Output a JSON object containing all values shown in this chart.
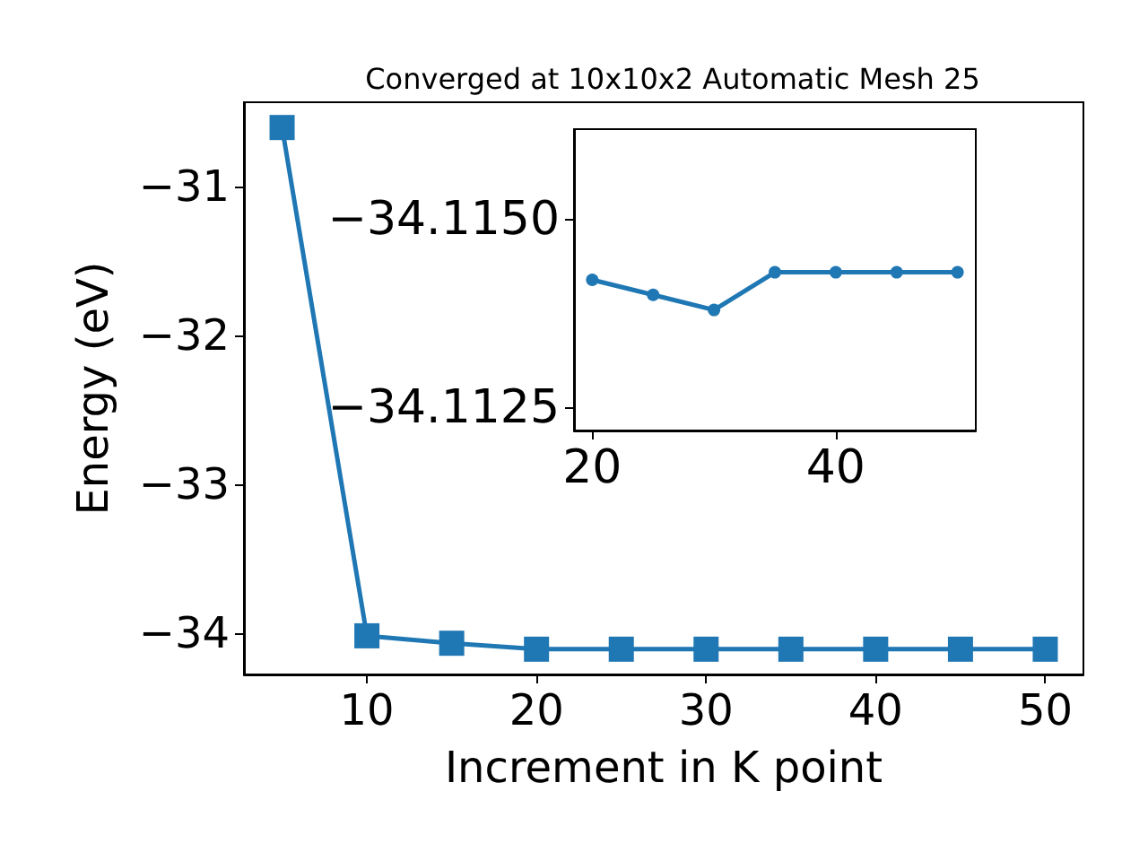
{
  "chart_data": [
    {
      "type": "line",
      "title": "Converged at 10x10x2 Automatic Mesh 25",
      "xlabel": "Increment in K point",
      "ylabel": "Energy (eV)",
      "x": [
        5,
        10,
        15,
        20,
        25,
        30,
        35,
        40,
        45,
        50
      ],
      "series": [
        {
          "color": "#1f77b4",
          "values": [
            -30.6,
            -34.02,
            -34.07,
            -34.11,
            -34.11,
            -34.11,
            -34.11,
            -34.11,
            -34.11,
            -34.11
          ]
        }
      ],
      "marker": "square",
      "line_style": "solid",
      "xlim": [
        2.75,
        52.25
      ],
      "xticks": [
        10,
        20,
        30,
        40,
        50
      ],
      "ylim": [
        -34.28,
        -30.43
      ],
      "yticks": [
        {
          "value": -34,
          "label": "−34"
        },
        {
          "value": -33,
          "label": "−33"
        },
        {
          "value": -32,
          "label": "−32"
        },
        {
          "value": -31,
          "label": "−31"
        }
      ]
    },
    {
      "type": "line",
      "x": [
        20,
        25,
        30,
        35,
        40,
        45,
        50
      ],
      "series": [
        {
          "color": "#1f77b4",
          "values": [
            -34.1142,
            -34.114,
            -34.1138,
            -34.1143,
            -34.1143,
            -34.1143,
            -34.1143
          ]
        }
      ],
      "marker": "circle",
      "line_style": "solid",
      "xlim": [
        18.5,
        51.5
      ],
      "xticks": [
        20,
        40
      ],
      "ylim": [
        -34.1122,
        -34.1162
      ],
      "yticks": [
        {
          "value": -34.115,
          "label": "−34.1150"
        },
        {
          "value": -34.1125,
          "label": "−34.1125"
        }
      ]
    }
  ]
}
